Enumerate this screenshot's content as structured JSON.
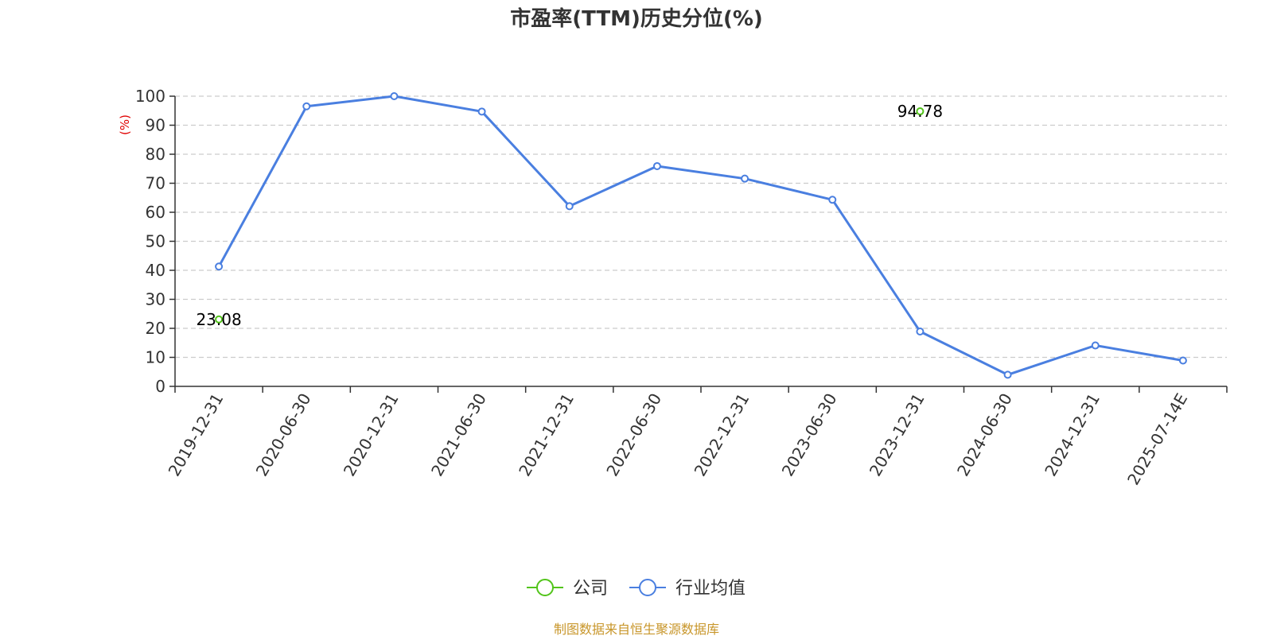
{
  "colors": {
    "company": "#52c41a",
    "industry": "#4a7fe0",
    "grid": "#cccccc",
    "axis": "#333333",
    "unit": "#e00000",
    "source": "#c8962a"
  },
  "legend": {
    "placement": "bottom-center",
    "items": [
      "公司",
      "行业均值"
    ]
  },
  "source_note": "制图数据来自恒生聚源数据库",
  "chart_data": {
    "type": "line",
    "title": "市盈率(TTM)历史分位(%)",
    "ylabel": "(%)",
    "xlabel": "",
    "ylim": [
      0,
      100
    ],
    "y_ticks": [
      0,
      10,
      20,
      30,
      40,
      50,
      60,
      70,
      80,
      90,
      100
    ],
    "grid": true,
    "categories": [
      "2019-12-31",
      "2020-06-30",
      "2020-12-31",
      "2021-06-30",
      "2021-12-31",
      "2022-06-30",
      "2022-12-31",
      "2023-06-30",
      "2023-12-31",
      "2024-06-30",
      "2024-12-31",
      "2025-07-14E"
    ],
    "series": [
      {
        "name": "公司",
        "values": [
          23.08,
          null,
          null,
          null,
          null,
          null,
          null,
          null,
          94.78,
          null,
          null,
          null
        ],
        "labels": [
          "23.08",
          null,
          null,
          null,
          null,
          null,
          null,
          null,
          "94.78",
          null,
          null,
          null
        ]
      },
      {
        "name": "行业均值",
        "values": [
          41.3,
          96.5,
          100,
          94.7,
          62.1,
          75.9,
          71.6,
          64.3,
          18.9,
          4.0,
          14.1,
          8.9
        ]
      }
    ]
  }
}
